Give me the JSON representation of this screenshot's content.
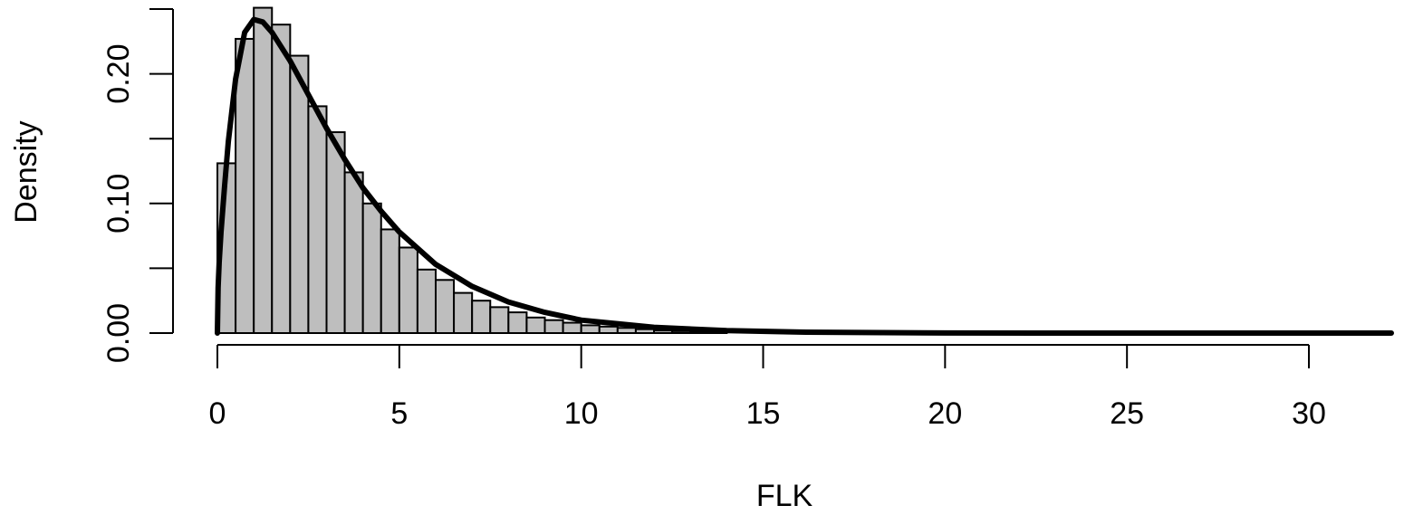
{
  "chart_data": {
    "type": "bar",
    "title": "",
    "xlabel": "FLK",
    "ylabel": "Density",
    "xlim": [
      0,
      32.3
    ],
    "ylim": [
      0,
      0.25
    ],
    "bin_width": 0.5,
    "bins": [
      {
        "x0": 0.0,
        "density": 0.131
      },
      {
        "x0": 0.5,
        "density": 0.227
      },
      {
        "x0": 1.0,
        "density": 0.251
      },
      {
        "x0": 1.5,
        "density": 0.238
      },
      {
        "x0": 2.0,
        "density": 0.214
      },
      {
        "x0": 2.5,
        "density": 0.175
      },
      {
        "x0": 3.0,
        "density": 0.155
      },
      {
        "x0": 3.5,
        "density": 0.124
      },
      {
        "x0": 4.0,
        "density": 0.1
      },
      {
        "x0": 4.5,
        "density": 0.08
      },
      {
        "x0": 5.0,
        "density": 0.066
      },
      {
        "x0": 5.5,
        "density": 0.049
      },
      {
        "x0": 6.0,
        "density": 0.041
      },
      {
        "x0": 6.5,
        "density": 0.031
      },
      {
        "x0": 7.0,
        "density": 0.025
      },
      {
        "x0": 7.5,
        "density": 0.02
      },
      {
        "x0": 8.0,
        "density": 0.016
      },
      {
        "x0": 8.5,
        "density": 0.012
      },
      {
        "x0": 9.0,
        "density": 0.01
      },
      {
        "x0": 9.5,
        "density": 0.008
      },
      {
        "x0": 10.0,
        "density": 0.006
      },
      {
        "x0": 10.5,
        "density": 0.005
      },
      {
        "x0": 11.0,
        "density": 0.004
      },
      {
        "x0": 11.5,
        "density": 0.003
      },
      {
        "x0": 12.0,
        "density": 0.002
      },
      {
        "x0": 12.5,
        "density": 0.0015
      },
      {
        "x0": 13.0,
        "density": 0.001
      },
      {
        "x0": 13.5,
        "density": 0.0008
      }
    ],
    "density_curve": {
      "x": [
        0.0,
        0.02,
        0.05,
        0.1,
        0.2,
        0.3,
        0.5,
        0.75,
        1.0,
        1.25,
        1.5,
        2.0,
        2.5,
        3.0,
        3.5,
        4.0,
        4.5,
        5.0,
        6.0,
        7.0,
        8.0,
        9.0,
        10.0,
        12.0,
        14.0,
        16.0,
        20.0,
        25.0,
        32.3
      ],
      "y": [
        0.0,
        0.035,
        0.055,
        0.078,
        0.114,
        0.148,
        0.196,
        0.232,
        0.242,
        0.24,
        0.232,
        0.21,
        0.184,
        0.158,
        0.134,
        0.112,
        0.094,
        0.078,
        0.053,
        0.036,
        0.024,
        0.016,
        0.01,
        0.0045,
        0.0019,
        0.0008,
        0.0001,
        0.0,
        0.0
      ]
    },
    "x_ticks": [
      0,
      5,
      10,
      15,
      20,
      25,
      30
    ],
    "x_tick_labels": [
      "0",
      "5",
      "10",
      "15",
      "20",
      "25",
      "30"
    ],
    "y_ticks": [
      0.0,
      0.05,
      0.1,
      0.15,
      0.2,
      0.25
    ],
    "y_tick_labels": [
      "0.00",
      "",
      "0.10",
      "",
      "0.20",
      ""
    ],
    "bar_fill": "#bebebe",
    "bar_stroke": "#000000",
    "curve_color": "#000000",
    "grid": false,
    "legend": "none"
  }
}
